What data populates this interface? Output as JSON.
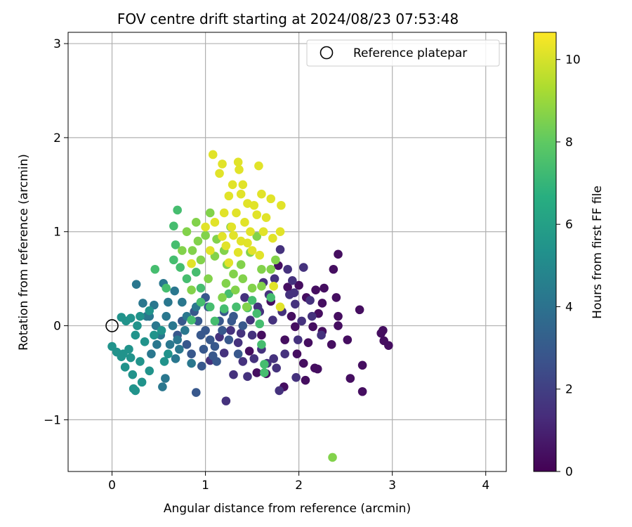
{
  "chart_data": {
    "type": "scatter",
    "title": "FOV centre drift starting at 2024/08/23 07:53:48",
    "xlabel": "Angular distance from reference (arcmin)",
    "ylabel": "Rotation from reference (arcmin)",
    "xlim": [
      -0.47,
      4.22
    ],
    "ylim": [
      -1.55,
      3.12
    ],
    "xticks": [
      0,
      1,
      2,
      3,
      4
    ],
    "xtick_labels": [
      "0",
      "1",
      "2",
      "3",
      "4"
    ],
    "yticks": [
      -1,
      0,
      1,
      2,
      3
    ],
    "ytick_labels": [
      "−1",
      "0",
      "1",
      "2",
      "3"
    ],
    "grid": true,
    "legend": {
      "position": "top-right",
      "entries": [
        "Reference platepar"
      ]
    },
    "reference_point": {
      "x": 0,
      "y": 0,
      "label": "Reference platepar"
    },
    "colorbar": {
      "label": "Hours from first FF file",
      "range": [
        0,
        10.66
      ],
      "ticks": [
        0,
        2,
        4,
        6,
        8,
        10
      ],
      "tick_labels": [
        "0",
        "2",
        "4",
        "6",
        "8",
        "10"
      ],
      "colormap": "viridis"
    },
    "series": [
      {
        "points": [
          [
            2.42,
            0.76
          ],
          [
            2.37,
            0.6
          ],
          [
            2.65,
            0.17
          ],
          [
            2.42,
            0.1
          ],
          [
            2.4,
            0.3
          ],
          [
            2.42,
            0.0
          ],
          [
            2.52,
            -0.15
          ],
          [
            2.55,
            -0.56
          ],
          [
            2.68,
            -0.42
          ],
          [
            2.68,
            -0.7
          ],
          [
            2.9,
            -0.05
          ],
          [
            2.88,
            -0.08
          ],
          [
            2.91,
            -0.16
          ],
          [
            2.96,
            -0.21
          ],
          [
            2.25,
            -0.06
          ],
          [
            2.2,
            -0.46
          ],
          [
            2.17,
            -0.45
          ],
          [
            2.05,
            -0.4
          ],
          [
            2.1,
            -0.18
          ],
          [
            2.15,
            -0.01
          ],
          [
            2.0,
            0.43
          ],
          [
            2.18,
            0.38
          ],
          [
            2.27,
            0.4
          ],
          [
            2.21,
            0.13
          ],
          [
            1.96,
            -0.01
          ],
          [
            2.07,
            -0.58
          ],
          [
            1.84,
            -0.65
          ],
          [
            1.65,
            -0.51
          ],
          [
            1.88,
            0.41
          ],
          [
            1.78,
            0.64
          ],
          [
            2.35,
            -0.2
          ],
          [
            1.55,
            -0.5
          ],
          [
            1.47,
            -0.27
          ],
          [
            1.92,
            0.1
          ],
          [
            2.08,
            0.3
          ],
          [
            1.85,
            -0.15
          ],
          [
            1.7,
            0.26
          ],
          [
            2.25,
            0.24
          ],
          [
            1.98,
            -0.3
          ],
          [
            1.6,
            -0.1
          ]
        ]
      },
      {
        "points": [
          [
            1.8,
            0.81
          ],
          [
            1.88,
            0.6
          ],
          [
            2.05,
            0.62
          ],
          [
            1.93,
            0.48
          ],
          [
            2.12,
            0.27
          ],
          [
            1.96,
            0.23
          ],
          [
            1.72,
            0.06
          ],
          [
            1.6,
            -0.25
          ],
          [
            1.4,
            -0.38
          ],
          [
            1.45,
            -0.54
          ],
          [
            1.79,
            -0.69
          ],
          [
            1.97,
            -0.55
          ],
          [
            1.76,
            -0.45
          ],
          [
            1.3,
            -0.52
          ],
          [
            1.2,
            -0.29
          ],
          [
            1.05,
            -0.37
          ],
          [
            1.22,
            -0.8
          ],
          [
            1.48,
            0.06
          ],
          [
            1.68,
            0.33
          ],
          [
            2.24,
            -0.1
          ],
          [
            1.58,
            0.15
          ],
          [
            1.38,
            -0.08
          ],
          [
            2.03,
            0.05
          ],
          [
            1.9,
            0.33
          ],
          [
            1.35,
            -0.18
          ],
          [
            1.15,
            -0.12
          ],
          [
            1.62,
            0.46
          ],
          [
            1.82,
            0.15
          ],
          [
            1.52,
            -0.35
          ],
          [
            1.73,
            -0.35
          ],
          [
            1.42,
            0.3
          ],
          [
            1.99,
            -0.15
          ],
          [
            2.14,
            0.1
          ],
          [
            1.56,
            0.2
          ],
          [
            1.27,
            -0.05
          ],
          [
            1.66,
            -0.4
          ],
          [
            1.95,
            0.35
          ],
          [
            1.85,
            -0.3
          ],
          [
            1.5,
            -0.1
          ],
          [
            1.74,
            0.5
          ]
        ]
      },
      {
        "points": [
          [
            0.9,
            -0.71
          ],
          [
            0.96,
            -0.43
          ],
          [
            1.08,
            -0.32
          ],
          [
            1.05,
            -0.15
          ],
          [
            0.85,
            -0.3
          ],
          [
            1.0,
            -0.05
          ],
          [
            1.15,
            0.05
          ],
          [
            1.25,
            -0.15
          ],
          [
            0.92,
            0.05
          ],
          [
            0.8,
            -0.2
          ],
          [
            1.1,
            -0.22
          ],
          [
            1.3,
            0.1
          ],
          [
            0.95,
            -0.1
          ],
          [
            1.2,
            0.15
          ],
          [
            1.4,
            0.0
          ],
          [
            1.12,
            -0.38
          ],
          [
            0.75,
            0.05
          ],
          [
            0.88,
            0.15
          ],
          [
            1.03,
            0.2
          ],
          [
            1.35,
            -0.3
          ],
          [
            1.0,
            0.3
          ],
          [
            0.7,
            -0.1
          ],
          [
            1.18,
            -0.05
          ],
          [
            1.28,
            0.05
          ],
          [
            0.98,
            -0.25
          ]
        ]
      },
      {
        "points": [
          [
            0.26,
            0.44
          ],
          [
            0.33,
            0.24
          ],
          [
            0.45,
            0.22
          ],
          [
            0.55,
            0.45
          ],
          [
            0.67,
            0.37
          ],
          [
            0.54,
            -0.65
          ],
          [
            0.57,
            -0.56
          ],
          [
            0.7,
            -0.15
          ],
          [
            0.58,
            0.1
          ],
          [
            0.47,
            0.0
          ],
          [
            0.37,
            0.1
          ],
          [
            0.62,
            -0.2
          ],
          [
            0.75,
            0.25
          ],
          [
            0.8,
            0.1
          ],
          [
            0.65,
            0.0
          ],
          [
            0.42,
            -0.3
          ],
          [
            0.52,
            -0.1
          ],
          [
            0.72,
            -0.25
          ],
          [
            0.85,
            -0.4
          ],
          [
            0.9,
            0.2
          ],
          [
            0.78,
            -0.05
          ],
          [
            0.6,
            0.25
          ],
          [
            0.48,
            -0.2
          ],
          [
            0.68,
            -0.35
          ],
          [
            0.4,
            0.1
          ]
        ]
      },
      {
        "points": [
          [
            0.0,
            -0.22
          ],
          [
            0.05,
            -0.28
          ],
          [
            0.1,
            -0.33
          ],
          [
            0.14,
            -0.44
          ],
          [
            0.12,
            -0.3
          ],
          [
            0.18,
            -0.25
          ],
          [
            0.2,
            -0.34
          ],
          [
            0.22,
            -0.52
          ],
          [
            0.23,
            -0.67
          ],
          [
            0.25,
            -0.69
          ],
          [
            0.32,
            -0.6
          ],
          [
            0.4,
            -0.48
          ],
          [
            0.3,
            -0.38
          ],
          [
            0.35,
            -0.17
          ],
          [
            0.25,
            -0.1
          ],
          [
            0.15,
            0.05
          ],
          [
            0.1,
            0.09
          ],
          [
            0.2,
            0.08
          ],
          [
            0.3,
            0.1
          ],
          [
            0.4,
            0.16
          ],
          [
            0.53,
            -0.05
          ],
          [
            0.56,
            -0.38
          ],
          [
            0.6,
            -0.3
          ],
          [
            0.27,
            0.0
          ],
          [
            0.45,
            -0.1
          ]
        ]
      },
      {
        "points": [
          [
            0.7,
            1.23
          ],
          [
            0.66,
            1.06
          ],
          [
            0.68,
            0.86
          ],
          [
            0.66,
            0.7
          ],
          [
            0.46,
            0.6
          ],
          [
            0.58,
            0.4
          ],
          [
            0.73,
            0.62
          ],
          [
            0.9,
            0.57
          ],
          [
            0.8,
            0.5
          ],
          [
            0.95,
            0.4
          ],
          [
            1.05,
            0.2
          ],
          [
            1.2,
            0.18
          ],
          [
            1.33,
            0.2
          ],
          [
            1.45,
            0.19
          ],
          [
            1.55,
            0.13
          ],
          [
            1.58,
            0.02
          ],
          [
            1.6,
            -0.2
          ],
          [
            1.63,
            -0.41
          ],
          [
            1.63,
            -0.5
          ],
          [
            1.25,
            0.34
          ],
          [
            1.5,
            0.27
          ],
          [
            0.95,
            0.25
          ],
          [
            0.85,
            0.06
          ],
          [
            1.1,
            0.05
          ],
          [
            1.7,
            0.3
          ]
        ]
      },
      {
        "points": [
          [
            0.9,
            1.1
          ],
          [
            0.8,
            1.0
          ],
          [
            0.75,
            0.8
          ],
          [
            1.0,
            0.96
          ],
          [
            1.1,
            0.74
          ],
          [
            1.2,
            0.8
          ],
          [
            1.23,
            0.65
          ],
          [
            1.3,
            0.55
          ],
          [
            1.4,
            0.5
          ],
          [
            1.5,
            0.4
          ],
          [
            1.6,
            0.6
          ],
          [
            1.7,
            0.6
          ],
          [
            1.75,
            0.7
          ],
          [
            1.03,
            0.5
          ],
          [
            0.95,
            0.7
          ],
          [
            0.86,
            0.8
          ],
          [
            1.18,
            0.3
          ],
          [
            1.32,
            0.38
          ],
          [
            1.44,
            0.2
          ],
          [
            1.6,
            0.42
          ],
          [
            2.36,
            -1.4
          ],
          [
            1.05,
            1.2
          ],
          [
            0.85,
            0.38
          ],
          [
            1.27,
            1.05
          ],
          [
            1.48,
            0.78
          ],
          [
            1.12,
            0.92
          ],
          [
            1.55,
            0.95
          ],
          [
            0.92,
            0.9
          ],
          [
            1.38,
            0.65
          ],
          [
            1.22,
            0.45
          ]
        ]
      },
      {
        "points": [
          [
            1.08,
            1.82
          ],
          [
            1.18,
            1.72
          ],
          [
            1.15,
            1.62
          ],
          [
            1.35,
            1.74
          ],
          [
            1.36,
            1.66
          ],
          [
            1.57,
            1.7
          ],
          [
            1.29,
            1.5
          ],
          [
            1.4,
            1.5
          ],
          [
            1.25,
            1.38
          ],
          [
            1.45,
            1.3
          ],
          [
            1.6,
            1.4
          ],
          [
            1.7,
            1.35
          ],
          [
            1.81,
            1.28
          ],
          [
            1.55,
            1.18
          ],
          [
            1.62,
            1.0
          ],
          [
            1.8,
            1.0
          ],
          [
            1.72,
            0.93
          ],
          [
            1.38,
            0.9
          ],
          [
            1.22,
            0.85
          ],
          [
            1.5,
            0.8
          ],
          [
            1.2,
            1.2
          ],
          [
            1.1,
            1.1
          ],
          [
            1.0,
            1.05
          ],
          [
            0.85,
            0.66
          ],
          [
            1.25,
            0.67
          ],
          [
            1.8,
            0.2
          ],
          [
            1.73,
            0.42
          ],
          [
            1.3,
            0.96
          ],
          [
            1.42,
            1.1
          ],
          [
            1.33,
            1.2
          ],
          [
            1.48,
            1.0
          ],
          [
            1.28,
            1.05
          ],
          [
            1.52,
            1.28
          ],
          [
            1.38,
            1.4
          ],
          [
            1.65,
            1.15
          ],
          [
            1.18,
            0.95
          ],
          [
            1.45,
            0.88
          ],
          [
            1.58,
            0.75
          ],
          [
            1.05,
            0.8
          ],
          [
            1.35,
            0.78
          ]
        ]
      }
    ]
  }
}
